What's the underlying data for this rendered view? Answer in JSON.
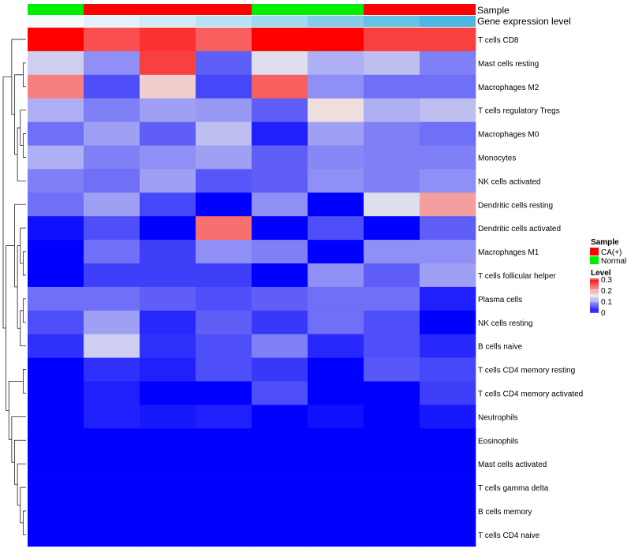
{
  "chart_data": {
    "type": "heatmap",
    "title": "",
    "annotation_tracks": [
      {
        "name": "Sample",
        "values": [
          "Normal",
          "CA(+)",
          "CA(+)",
          "CA(+)",
          "Normal",
          "Normal",
          "CA(+)",
          "CA(+)"
        ]
      },
      {
        "name": "Gene expression level",
        "values": [
          0.05,
          0.08,
          0.12,
          0.16,
          0.2,
          0.25,
          0.3,
          0.35
        ]
      }
    ],
    "rows": [
      "T cells CD8",
      "Mast cells resting",
      "Macrophages M2",
      "T cells regulatory  Tregs",
      "Macrophages M0",
      "Monocytes",
      "NK cells activated",
      "Dendritic cells resting",
      "Dendritic cells activated",
      "Macrophages M1",
      "T cells follicular helper",
      "Plasma cells",
      "NK cells resting",
      "B cells naive",
      "T cells CD4 memory resting",
      "T cells CD4 memory activated",
      "Neutrophils",
      "Eosinophils",
      "Mast cells activated",
      "T cells gamma delta",
      "B cells memory",
      "T cells CD4 naive"
    ],
    "values": [
      [
        0.3,
        0.25,
        0.27,
        0.24,
        0.3,
        0.3,
        0.26,
        0.26
      ],
      [
        0.13,
        0.09,
        0.26,
        0.06,
        0.14,
        0.11,
        0.12,
        0.08
      ],
      [
        0.22,
        0.05,
        0.17,
        0.045,
        0.24,
        0.09,
        0.07,
        0.07
      ],
      [
        0.11,
        0.08,
        0.1,
        0.095,
        0.06,
        0.16,
        0.11,
        0.12
      ],
      [
        0.07,
        0.1,
        0.06,
        0.12,
        0.02,
        0.1,
        0.08,
        0.07
      ],
      [
        0.11,
        0.08,
        0.09,
        0.1,
        0.06,
        0.085,
        0.08,
        0.08
      ],
      [
        0.08,
        0.07,
        0.1,
        0.055,
        0.06,
        0.09,
        0.08,
        0.09
      ],
      [
        0.07,
        0.1,
        0.045,
        0.0,
        0.09,
        0.0,
        0.14,
        0.2
      ],
      [
        0.01,
        0.05,
        0.0,
        0.23,
        0.0,
        0.05,
        0.0,
        0.06
      ],
      [
        0.0,
        0.07,
        0.04,
        0.09,
        0.08,
        0.0,
        0.09,
        0.09
      ],
      [
        0.0,
        0.04,
        0.04,
        0.04,
        0.0,
        0.09,
        0.06,
        0.1
      ],
      [
        0.07,
        0.07,
        0.06,
        0.05,
        0.06,
        0.07,
        0.07,
        0.02
      ],
      [
        0.05,
        0.1,
        0.025,
        0.06,
        0.035,
        0.07,
        0.05,
        0.0
      ],
      [
        0.03,
        0.13,
        0.03,
        0.05,
        0.08,
        0.025,
        0.05,
        0.025
      ],
      [
        0.0,
        0.03,
        0.02,
        0.05,
        0.035,
        0.0,
        0.055,
        0.045
      ],
      [
        0.0,
        0.02,
        0.0,
        0.0,
        0.05,
        0.0,
        0.0,
        0.04
      ],
      [
        0.0,
        0.02,
        0.015,
        0.02,
        0.0,
        0.01,
        0.0,
        0.015
      ],
      [
        0.0,
        0.0,
        0.0,
        0.0,
        0.0,
        0.0,
        0.0,
        0.0
      ],
      [
        0.0,
        0.0,
        0.0,
        0.0,
        0.0,
        0.0,
        0.0,
        0.0
      ],
      [
        0.0,
        0.0,
        0.0,
        0.0,
        0.0,
        0.0,
        0.0,
        0.0
      ],
      [
        0.0,
        0.0,
        0.0,
        0.0,
        0.0,
        0.0,
        0.0,
        0.0
      ],
      [
        0.0,
        0.0,
        0.0,
        0.0,
        0.0,
        0.0,
        0.0,
        0.0
      ]
    ],
    "color_scale": {
      "min": 0,
      "mid": 0.15,
      "max": 0.3,
      "low_color": "#0000ff",
      "mid_color": "#eeeeee",
      "high_color": "#ff0000"
    },
    "row_dendrogram": true,
    "legend_position": "right",
    "legends": {
      "sample": {
        "title": "Sample",
        "items": [
          {
            "label": "CA(+)",
            "color": "#ff0000"
          },
          {
            "label": "Normal",
            "color": "#00ee00"
          }
        ]
      },
      "level": {
        "title": "Level",
        "ticks": [
          "0.3",
          "0.2",
          "0.1",
          "0"
        ]
      }
    },
    "sample_colors": {
      "CA(+)": "#ff0000",
      "Normal": "#00ee00"
    },
    "expr_colors": [
      "#f5fafd",
      "#e3f2fa",
      "#d0ebf8",
      "#b9e3f5",
      "#9fd9f1",
      "#83cdeb",
      "#66c1e6",
      "#4db6e2"
    ]
  }
}
